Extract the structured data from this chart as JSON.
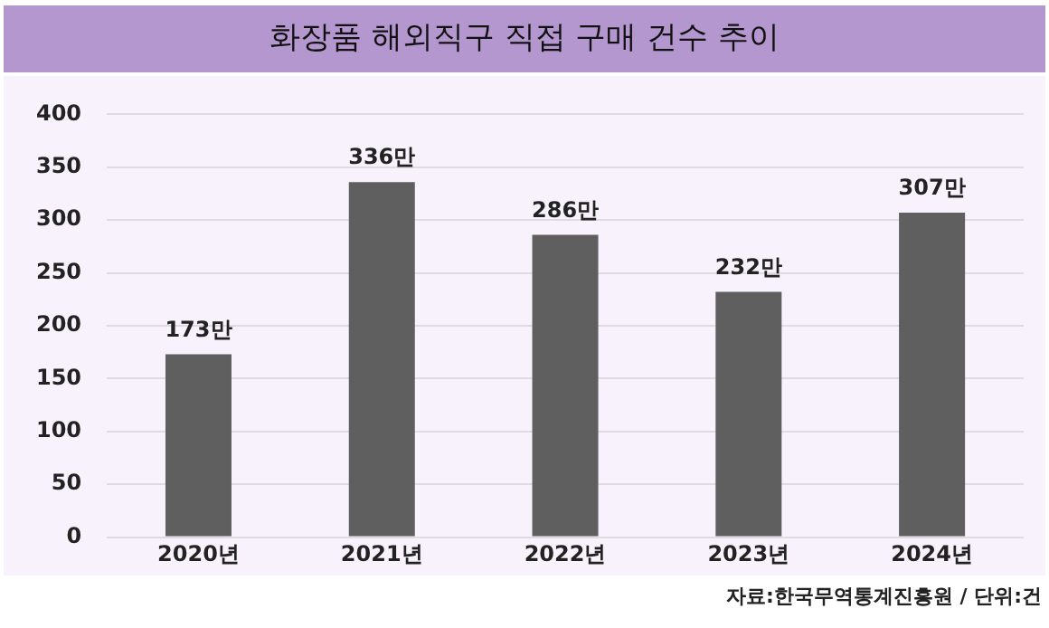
{
  "chart_data": {
    "type": "bar",
    "title": "화장품 해외직구 직접 구매 건수 추이",
    "categories": [
      "2020년",
      "2021년",
      "2022년",
      "2023년",
      "2024년"
    ],
    "values": [
      173,
      336,
      286,
      232,
      307
    ],
    "value_labels": [
      "173만",
      "336만",
      "286만",
      "232만",
      "307만"
    ],
    "color": "#5f5f5f",
    "ylim": [
      0,
      400
    ],
    "yticks": [
      0,
      50,
      100,
      150,
      200,
      250,
      300,
      350,
      400
    ],
    "grid": "y",
    "legend": false,
    "annotations": [
      "자료:한국무역통계진흥원 / 단위:건"
    ]
  }
}
